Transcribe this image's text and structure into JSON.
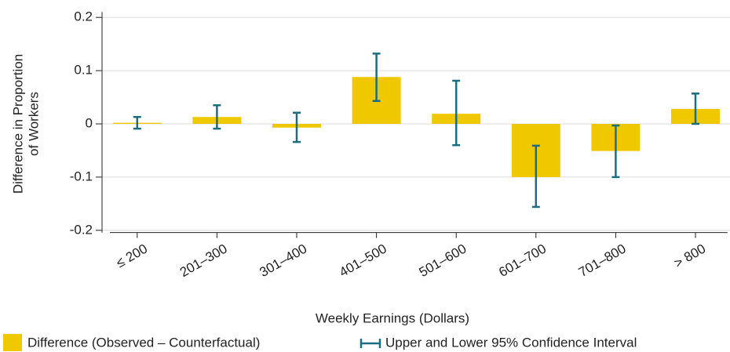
{
  "chart_data": {
    "type": "bar",
    "ylabel": [
      "Difference in Proportion",
      "of Workers"
    ],
    "xlabel": "Weekly Earnings (Dollars)",
    "categories": [
      "≤ 200",
      "201–300",
      "301–400",
      "401–500",
      "501–600",
      "601–700",
      "701–800",
      "> 800"
    ],
    "series": [
      {
        "name": "Difference (Observed – Counterfactual)",
        "color": "#f0c800",
        "values": [
          0.002,
          0.013,
          -0.007,
          0.088,
          0.019,
          -0.1,
          -0.051,
          0.028
        ]
      },
      {
        "name": "Upper and Lower 95% Confidence Interval",
        "color": "#1a6e80",
        "upper": [
          0.013,
          0.035,
          0.021,
          0.132,
          0.081,
          -0.041,
          -0.003,
          0.057
        ],
        "lower": [
          -0.009,
          -0.009,
          -0.034,
          0.043,
          -0.04,
          -0.156,
          -0.1,
          0.0
        ]
      }
    ],
    "ylim": [
      -0.21,
      0.21
    ],
    "yticks": [
      0.2,
      0.1,
      0,
      -0.1,
      -0.2
    ],
    "grid": true
  }
}
